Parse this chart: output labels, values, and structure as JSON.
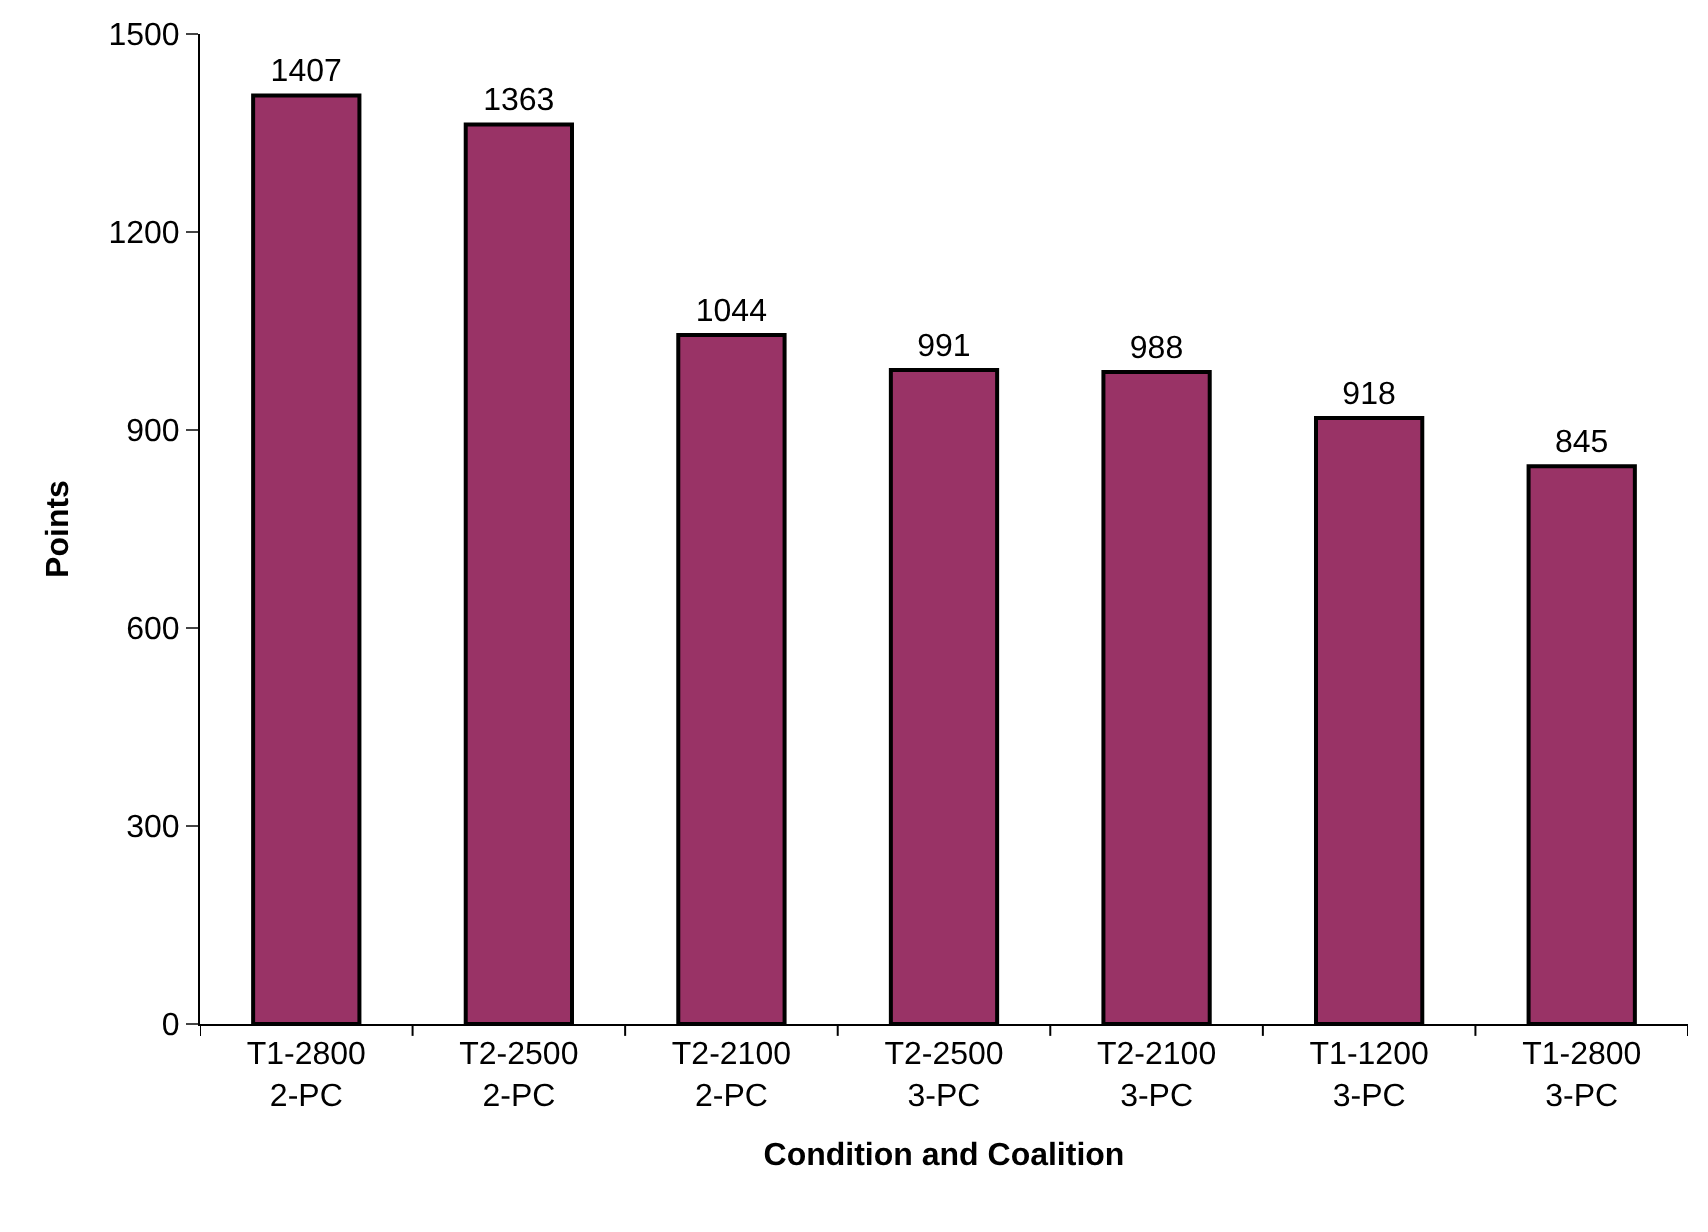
{
  "chart_data": {
    "type": "bar",
    "xlabel": "Condition and Coalition",
    "ylabel": "Points",
    "categories": [
      "T1-2800\n2-PC",
      "T2-2500\n2-PC",
      "T2-2100\n2-PC",
      "T2-2500\n3-PC",
      "T2-2100\n3-PC",
      "T1-1200\n3-PC",
      "T1-2800\n3-PC"
    ],
    "values": [
      1407,
      1363,
      1044,
      991,
      988,
      918,
      845
    ],
    "color": "#993366",
    "ylim": [
      0,
      1500
    ],
    "yticks": [
      0,
      300,
      600,
      900,
      1200,
      1500
    ],
    "legend": false,
    "data_labels": true
  }
}
